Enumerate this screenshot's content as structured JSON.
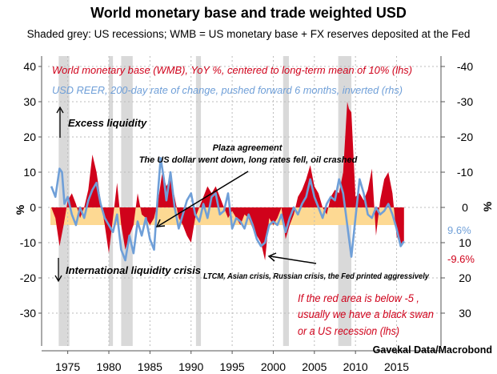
{
  "chart_data": {
    "type": "area",
    "title": "World monetary base and trade weighted USD",
    "subtitle": "Shaded grey: US recessions; WMB = US monetary base + FX reserves deposited at the Fed",
    "source": "Gavekal Data/Macrobond",
    "ylabel_left": "%",
    "ylabel_right": "%",
    "ylim_left": [
      -32,
      42
    ],
    "ylim_right_inverted": [
      32,
      -42
    ],
    "xlim": [
      1972.6,
      2020.4
    ],
    "x_ticks": [
      1975,
      1980,
      1985,
      1990,
      1995,
      2000,
      2005,
      2010,
      2015
    ],
    "y_ticks_left": [
      40,
      30,
      20,
      10,
      0,
      -10,
      -20,
      -30
    ],
    "y_ticks_right": [
      -40,
      -30,
      -20,
      -10,
      0,
      10,
      20,
      30
    ],
    "grid": true,
    "threshold_band": [
      0,
      -5
    ],
    "recessions": [
      [
        1973.9,
        1975.2
      ],
      [
        1980.0,
        1980.5
      ],
      [
        1981.5,
        1982.9
      ],
      [
        1990.6,
        1991.2
      ],
      [
        2001.2,
        2001.9
      ],
      [
        2007.9,
        2009.5
      ]
    ],
    "series": [
      {
        "name": "World monetary base (WMB), YoY %, centered to long-term mean of 10% (lhs)",
        "color": "#d0021b",
        "axis": "left",
        "last_label": "-9.6%",
        "x": [
          1973,
          1973.5,
          1974,
          1974.5,
          1975,
          1975.5,
          1976,
          1976.5,
          1977,
          1977.5,
          1978,
          1978.5,
          1979,
          1979.5,
          1980,
          1980.5,
          1981,
          1981.5,
          1982,
          1982.5,
          1983,
          1983.5,
          1984,
          1984.5,
          1985,
          1985.5,
          1986,
          1986.5,
          1987,
          1987.5,
          1988,
          1988.5,
          1989,
          1989.5,
          1990,
          1990.5,
          1991,
          1991.5,
          1992,
          1992.5,
          1993,
          1993.5,
          1994,
          1994.5,
          1995,
          1995.5,
          1996,
          1996.5,
          1997,
          1997.5,
          1998,
          1998.5,
          1999,
          1999.5,
          2000,
          2000.5,
          2001,
          2001.5,
          2002,
          2002.5,
          2003,
          2003.5,
          2004,
          2004.5,
          2005,
          2005.5,
          2006,
          2006.5,
          2007,
          2007.5,
          2008,
          2008.5,
          2009,
          2009.2,
          2009.5,
          2010,
          2010.5,
          2011,
          2011.5,
          2012,
          2012.5,
          2013,
          2013.5,
          2014,
          2014.5,
          2015,
          2015.5,
          2015.9
        ],
        "y": [
          0,
          -3,
          -11,
          -5,
          2,
          4,
          1,
          -3,
          0,
          5,
          15,
          10,
          2,
          -5,
          -13,
          -3,
          7,
          -5,
          -12,
          -8,
          -5,
          4,
          -2,
          -3,
          -5,
          -3,
          2,
          10,
          6,
          8,
          3,
          -3,
          -5,
          -8,
          -10,
          -3,
          0,
          3,
          6,
          4,
          6,
          3,
          0,
          -3,
          -1,
          -3,
          -5,
          -2,
          -3,
          -6,
          -8,
          -10,
          -15,
          -3,
          -5,
          -3,
          0,
          -9,
          -5,
          -2,
          3,
          5,
          8,
          12,
          6,
          4,
          0,
          -2,
          3,
          5,
          4,
          10,
          30,
          28,
          27,
          3,
          4,
          2,
          5,
          11,
          -8,
          2,
          8,
          10,
          4,
          -8,
          -11,
          -9.6
        ]
      },
      {
        "name": "USD REER, 200-day rate of change, pushed forward 6 months, inverted (rhs)",
        "color": "#6f9fd8",
        "axis": "right-inverted",
        "last_label": "9.6%",
        "x": [
          1973,
          1973.5,
          1974,
          1974.3,
          1974.6,
          1975,
          1975.5,
          1976,
          1976.5,
          1977,
          1977.5,
          1978,
          1978.5,
          1979,
          1979.5,
          1980,
          1980.5,
          1981,
          1981.5,
          1982,
          1982.5,
          1983,
          1983.5,
          1984,
          1984.5,
          1985,
          1985.5,
          1986,
          1986.3,
          1986.7,
          1987,
          1987.5,
          1988,
          1988.5,
          1989,
          1989.5,
          1990,
          1990.5,
          1991,
          1991.5,
          1992,
          1992.5,
          1993,
          1993.5,
          1994,
          1994.5,
          1995,
          1995.5,
          1996,
          1996.5,
          1997,
          1997.5,
          1998,
          1998.5,
          1999,
          1999.5,
          2000,
          2000.5,
          2001,
          2001.5,
          2002,
          2002.5,
          2003,
          2003.5,
          2004,
          2004.5,
          2005,
          2005.5,
          2006,
          2006.5,
          2007,
          2007.5,
          2008,
          2008.5,
          2009,
          2009.5,
          2010,
          2010.5,
          2011,
          2011.5,
          2012,
          2012.5,
          2013,
          2013.5,
          2014,
          2014.5,
          2015,
          2015.5,
          2015.9
        ],
        "y": [
          -6,
          -3,
          -11,
          -10,
          -1,
          -3,
          2,
          5,
          0,
          3,
          -2,
          -5,
          -7,
          -1,
          3,
          5,
          7,
          2,
          12,
          15,
          8,
          13,
          4,
          8,
          3,
          9,
          12,
          -5,
          -14,
          -8,
          -2,
          -10,
          0,
          6,
          2,
          -2,
          -4,
          2,
          4,
          -1,
          3,
          -3,
          -4,
          2,
          1,
          -4,
          6,
          3,
          4,
          6,
          2,
          5,
          9,
          11,
          10,
          5,
          4,
          5,
          2,
          7,
          3,
          0,
          2,
          -1,
          -3,
          -8,
          -3,
          0,
          3,
          -1,
          -3,
          -2,
          -8,
          -4,
          5,
          14,
          3,
          -8,
          -4,
          2,
          3,
          0,
          2,
          1,
          -1,
          2,
          6,
          11,
          9.6
        ]
      }
    ],
    "legend_placement": "top-left",
    "annotations": {
      "excess": "Excess liquidity",
      "crisis": "International liquidity crisis",
      "plaza1": "Plaza agreement",
      "plaza2": "The US dollar went down, long rates fell, oil crashed",
      "ltcm": "LTCM, Asian crisis, Russian crisis, the Fed printed aggressively",
      "note1": "If the red area is below -5 ,",
      "note2": "usually we have a black swan",
      "note3": "or a US recession (lhs)"
    }
  }
}
